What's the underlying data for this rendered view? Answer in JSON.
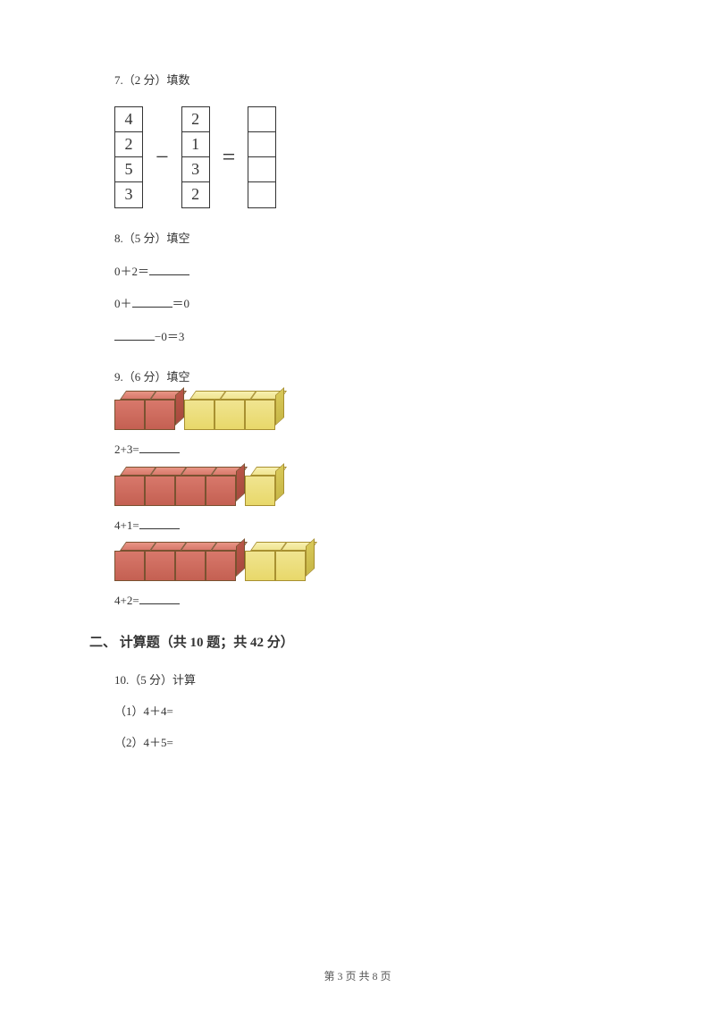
{
  "q7": {
    "label": "7.（2 分）填数",
    "col1": [
      "4",
      "2",
      "5",
      "3"
    ],
    "op1": "−",
    "col2": [
      "2",
      "1",
      "3",
      "2"
    ],
    "op2": "=",
    "col3": [
      "",
      "",
      "",
      ""
    ]
  },
  "q8": {
    "label": "8.（5 分）填空",
    "line1a": "0＋2＝",
    "line2a": "0＋",
    "line2b": "＝0",
    "line3b": "−0＝3"
  },
  "q9": {
    "label": "9.（6 分）填空",
    "row1": {
      "red": 2,
      "yellow": 3,
      "red_color": "#d8786b",
      "yellow_color": "#f0e490",
      "eq": "2+3="
    },
    "row2": {
      "red": 4,
      "yellow": 1,
      "red_color": "#d8786b",
      "yellow_color": "#f0e490",
      "eq": "4+1="
    },
    "row3": {
      "red": 4,
      "yellow": 2,
      "red_color": "#d8786b",
      "yellow_color": "#f0e490",
      "eq": "4+2="
    }
  },
  "section2": {
    "header": "二、 计算题（共 10 题；共 42 分）"
  },
  "q10": {
    "label": "10.（5 分）计算",
    "sub1": "（1）4＋4=",
    "sub2": "（2）4＋5="
  },
  "footer": {
    "text": "第 3 页 共 8 页"
  },
  "colors": {
    "text": "#333333",
    "background": "#ffffff",
    "border": "#333333"
  }
}
